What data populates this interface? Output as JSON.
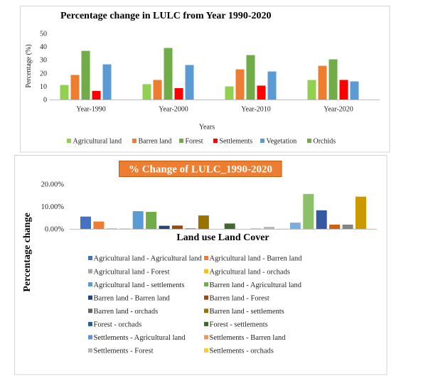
{
  "chart_data": [
    {
      "type": "bar",
      "title": "Percentage change in LULC from Year 1990-2020",
      "xlabel": "Years",
      "ylabel": "Percentage (%)",
      "categories": [
        "Year-1990",
        "Year-2000",
        "Year-2010",
        "Year-2020"
      ],
      "ylim": [
        0,
        50
      ],
      "yticks": [
        0,
        10,
        20,
        30,
        40,
        50
      ],
      "ytick_labels": [
        "0",
        "10",
        "20",
        "30",
        "40",
        "50"
      ],
      "grid": false,
      "legend": "bottom",
      "series": [
        {
          "name": "Agricultural land",
          "color": "#92D050",
          "values": [
            11.0,
            11.6,
            9.9,
            14.8
          ]
        },
        {
          "name": "Barren land",
          "color": "#ED7D31",
          "values": [
            18.6,
            14.8,
            22.8,
            25.5
          ]
        },
        {
          "name": "Forest",
          "color": "#70AD47",
          "values": [
            36.8,
            39.0,
            33.6,
            30.4
          ]
        },
        {
          "name": "Settlements",
          "color": "#FF0000",
          "values": [
            6.5,
            8.6,
            10.5,
            14.8
          ]
        },
        {
          "name": "Vegetation",
          "color": "#5B9BD5",
          "values": [
            26.6,
            26.1,
            21.2,
            13.7
          ]
        },
        {
          "name": "Orchids",
          "color": "#70AD47"
        }
      ]
    },
    {
      "type": "bar",
      "title": "% Change of LULC_1990-2020",
      "title_box_color": "#ED7D31",
      "xlabel": "Land use Land Cover",
      "ylabel": "Percentage change",
      "ylim": [
        0,
        20
      ],
      "yticks": [
        0,
        10,
        20
      ],
      "ytick_labels": [
        "0.00%",
        "10.00%",
        "20.00%"
      ],
      "grid": false,
      "legend": "bottom",
      "series": [
        {
          "name": "Agricultural land - Agricultural land",
          "color": "#4472C4",
          "values": [
            5.5
          ]
        },
        {
          "name": "Agricultural land - Barren land",
          "color": "#ED7D31",
          "values": [
            3.3
          ]
        },
        {
          "name": "Agricultural land - Forest",
          "color": "#A5A5A5",
          "values": [
            0.2
          ]
        },
        {
          "name": "Agricultural land - orchads",
          "color": "#FFC000",
          "values": [
            0.2
          ]
        },
        {
          "name": "Agricultural land - settlements",
          "color": "#5B9BD5",
          "values": [
            7.9
          ]
        },
        {
          "name": "Barren land - Agricultural land",
          "color": "#70AD47",
          "values": [
            7.6
          ]
        },
        {
          "name": "Barren land - Barren land",
          "color": "#264478",
          "values": [
            1.4
          ]
        },
        {
          "name": "Barren land - Forest",
          "color": "#9E480E",
          "values": [
            1.5
          ]
        },
        {
          "name": "Barren land - orchads",
          "color": "#636363",
          "values": [
            0.2
          ]
        },
        {
          "name": "Barren land - settlements",
          "color": "#997300",
          "values": [
            6.0
          ]
        },
        {
          "name": "Forest - orchads",
          "color": "#255E91",
          "values": [
            0.0
          ]
        },
        {
          "name": "Forest - settlements",
          "color": "#43682B",
          "values": [
            2.4
          ]
        },
        {
          "name": "Settlements - Agricultural land",
          "color": "#698ED0",
          "values": [
            0.0
          ]
        },
        {
          "name": "Settlements - Barren land",
          "color": "#F1975A",
          "values": [
            0.2
          ]
        },
        {
          "name": "Settlements - Forest",
          "color": "#B7B7B7",
          "values": [
            0.9
          ]
        },
        {
          "name": "Settlements - orchads",
          "color": "#FFCD33",
          "values": [
            0.1
          ]
        },
        {
          "color": "#7CAFDD",
          "values": [
            2.8
          ]
        },
        {
          "color": "#8CC168",
          "values": [
            15.6
          ]
        },
        {
          "color": "#335AA1",
          "values": [
            8.3
          ]
        },
        {
          "color": "#D26012",
          "values": [
            1.9
          ]
        },
        {
          "color": "#848484",
          "values": [
            1.9
          ]
        },
        {
          "color": "#CC9A00",
          "values": [
            14.4
          ]
        }
      ]
    }
  ]
}
